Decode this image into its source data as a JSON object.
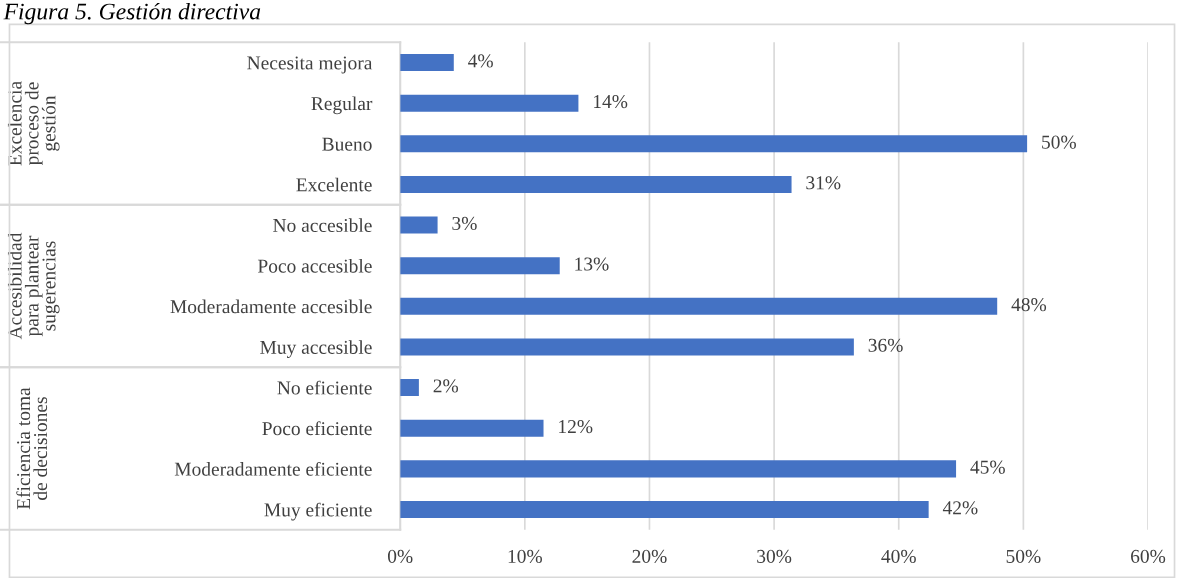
{
  "chart_data": {
    "type": "bar",
    "orientation": "horizontal",
    "title": "Figura 5. Gestión directiva",
    "categories": [
      "Necesita mejora",
      "Regular",
      "Bueno",
      "Excelente",
      "No accesible",
      "Poco accesible",
      "Moderadamente accesible",
      "Muy accesible",
      "No eficiente",
      "Poco eficiente",
      "Moderadamente eficiente",
      "Muy eficiente"
    ],
    "values": [
      4.3,
      14.3,
      50.3,
      31.4,
      3.0,
      12.8,
      47.9,
      36.4,
      1.5,
      11.5,
      44.6,
      42.4
    ],
    "value_labels": [
      "4%",
      "14%",
      "50%",
      "31%",
      "3%",
      "13%",
      "48%",
      "36%",
      "2%",
      "12%",
      "45%",
      "42%"
    ],
    "color": "#4472c4",
    "annotations": [
      "Excelencia\nproceso de\ngestión",
      "Accesibilidad\npara plantear\nsugerencias",
      "Eficiencia toma\nde decisiones"
    ],
    "xlim": [
      0,
      60
    ],
    "xticks": [
      {
        "value": 0,
        "label": "0%"
      },
      {
        "value": 10,
        "label": "10%"
      },
      {
        "value": 20,
        "label": "20%"
      },
      {
        "value": 30,
        "label": "30%"
      },
      {
        "value": 40,
        "label": "40%"
      },
      {
        "value": 50,
        "label": "50%"
      },
      {
        "value": 60,
        "label": "60%"
      }
    ],
    "grid": "x"
  }
}
